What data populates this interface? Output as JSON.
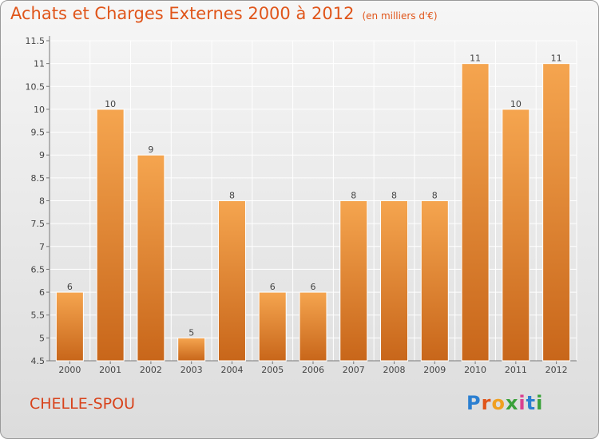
{
  "header": {
    "title": "Achats et Charges Externes 2000 à 2012",
    "subtitle": "(en milliers d'€)"
  },
  "footer": {
    "commune": "CHELLE-SPOU",
    "logo": "Proxiti"
  },
  "colors": {
    "bar_top": "#f5a54f",
    "bar_bottom": "#c8661a",
    "accent": "#e0551a"
  },
  "chart_data": {
    "type": "bar",
    "title": "Achats et Charges Externes 2000 à 2012",
    "subtitle": "(en milliers d'€)",
    "categories": [
      "2000",
      "2001",
      "2002",
      "2003",
      "2004",
      "2005",
      "2006",
      "2007",
      "2008",
      "2009",
      "2010",
      "2011",
      "2012"
    ],
    "values": [
      6,
      10,
      9,
      5,
      8,
      6,
      6,
      8,
      8,
      8,
      11,
      10,
      11
    ],
    "ylim": [
      4.5,
      11.5
    ],
    "yticks": [
      "4.5",
      "5",
      "5.5",
      "6",
      "6.5",
      "7",
      "7.5",
      "8",
      "8.5",
      "9",
      "9.5",
      "10",
      "10.5",
      "11",
      "11.5"
    ],
    "grid": true,
    "data_labels": true
  }
}
